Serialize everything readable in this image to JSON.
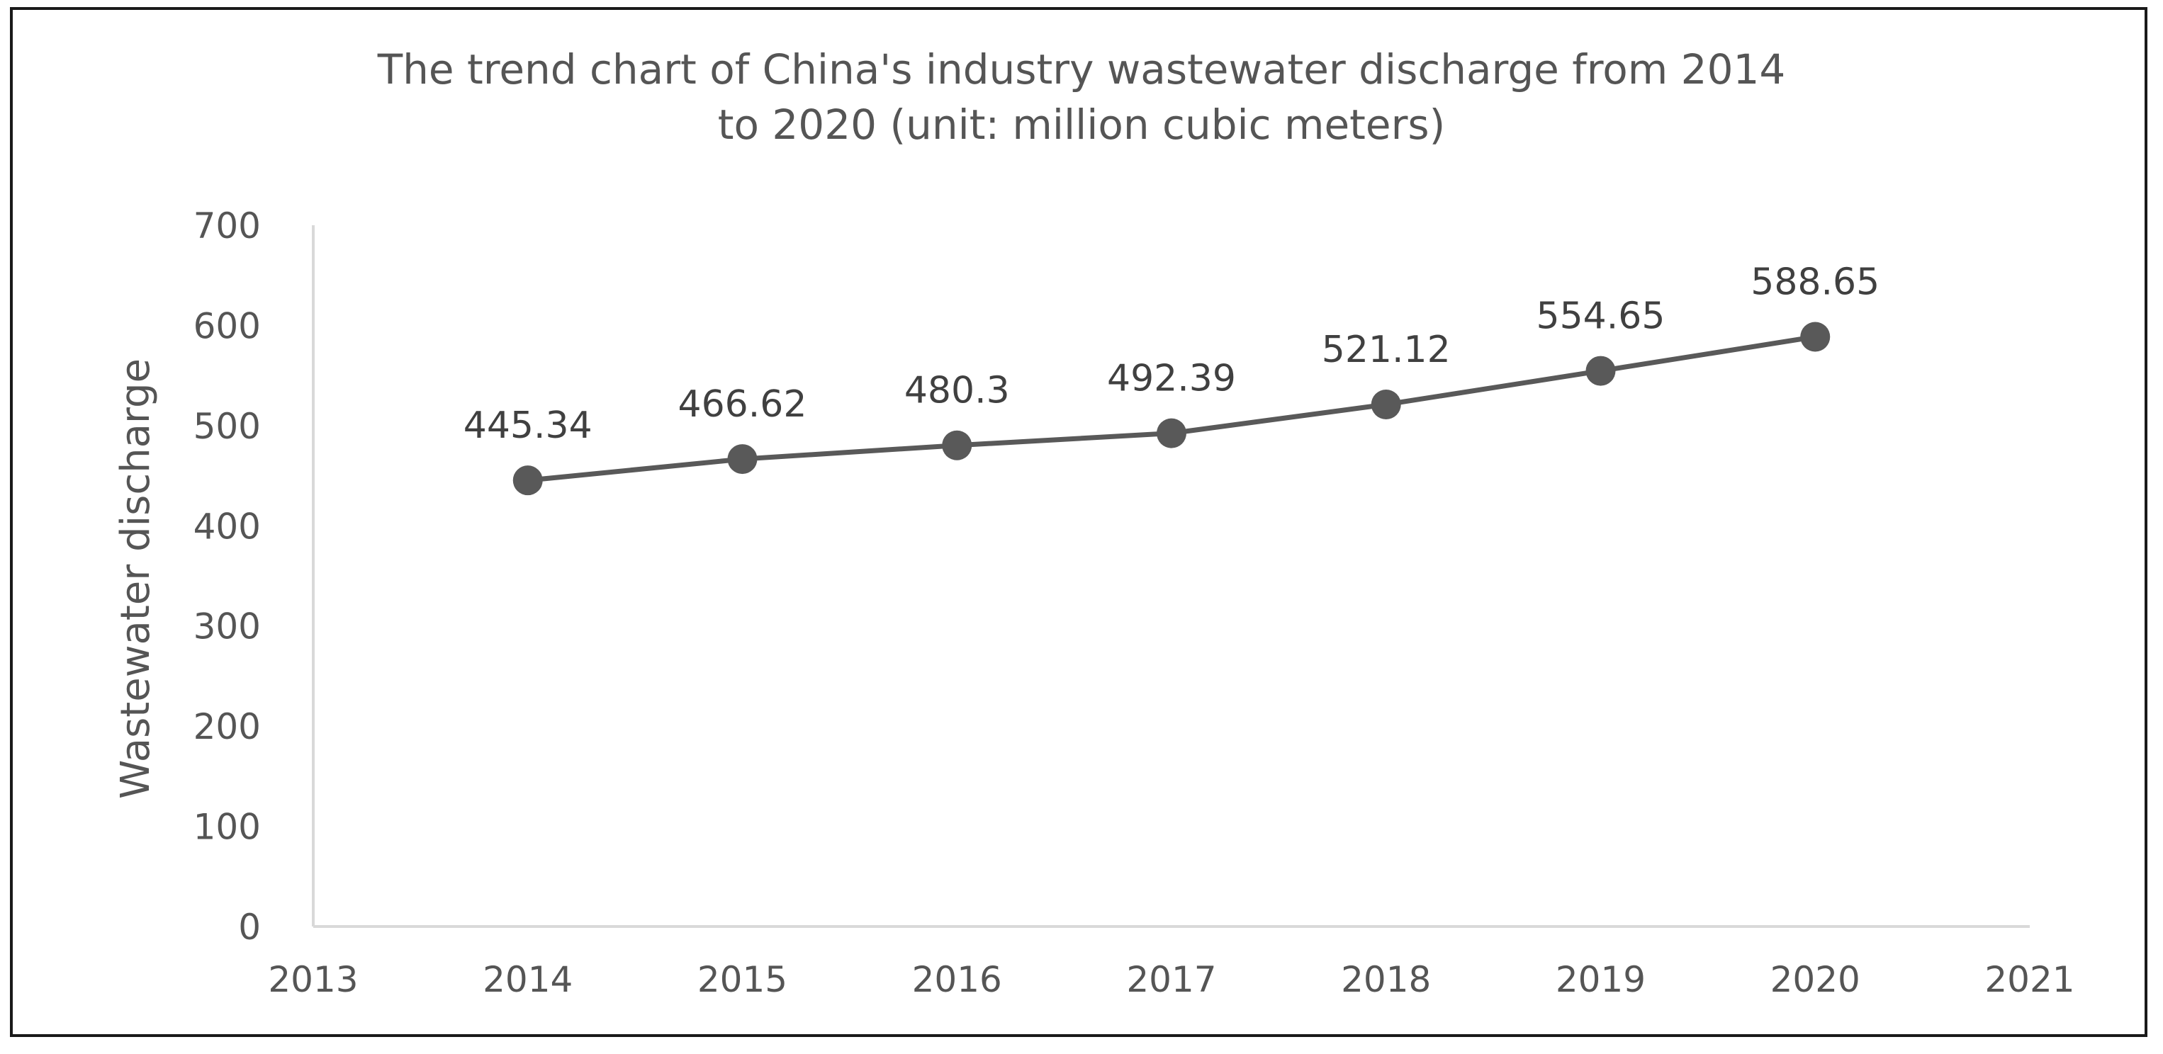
{
  "chart_data": {
    "type": "line",
    "title_lines": [
      "The trend chart of China's industry wastewater discharge from 2014",
      "to 2020 (unit: million cubic meters)"
    ],
    "xlabel": "",
    "ylabel": "Wastewater discharge",
    "x": [
      2014,
      2015,
      2016,
      2017,
      2018,
      2019,
      2020
    ],
    "values": [
      445.34,
      466.62,
      480.3,
      492.39,
      521.12,
      554.65,
      588.65
    ],
    "data_labels": [
      "445.34",
      "466.62",
      "480.3",
      "492.39",
      "521.12",
      "554.65",
      "588.65"
    ],
    "xlim": [
      2013,
      2021
    ],
    "ylim": [
      0,
      700
    ],
    "x_ticks": [
      "2013",
      "2014",
      "2015",
      "2016",
      "2017",
      "2018",
      "2019",
      "2020",
      "2021"
    ],
    "y_ticks": [
      "0",
      "100",
      "200",
      "300",
      "400",
      "500",
      "600",
      "700"
    ],
    "grid": false,
    "legend": "none",
    "line_color": "#595959",
    "marker_color": "#595959",
    "axis_color": "#d9d9d9"
  }
}
